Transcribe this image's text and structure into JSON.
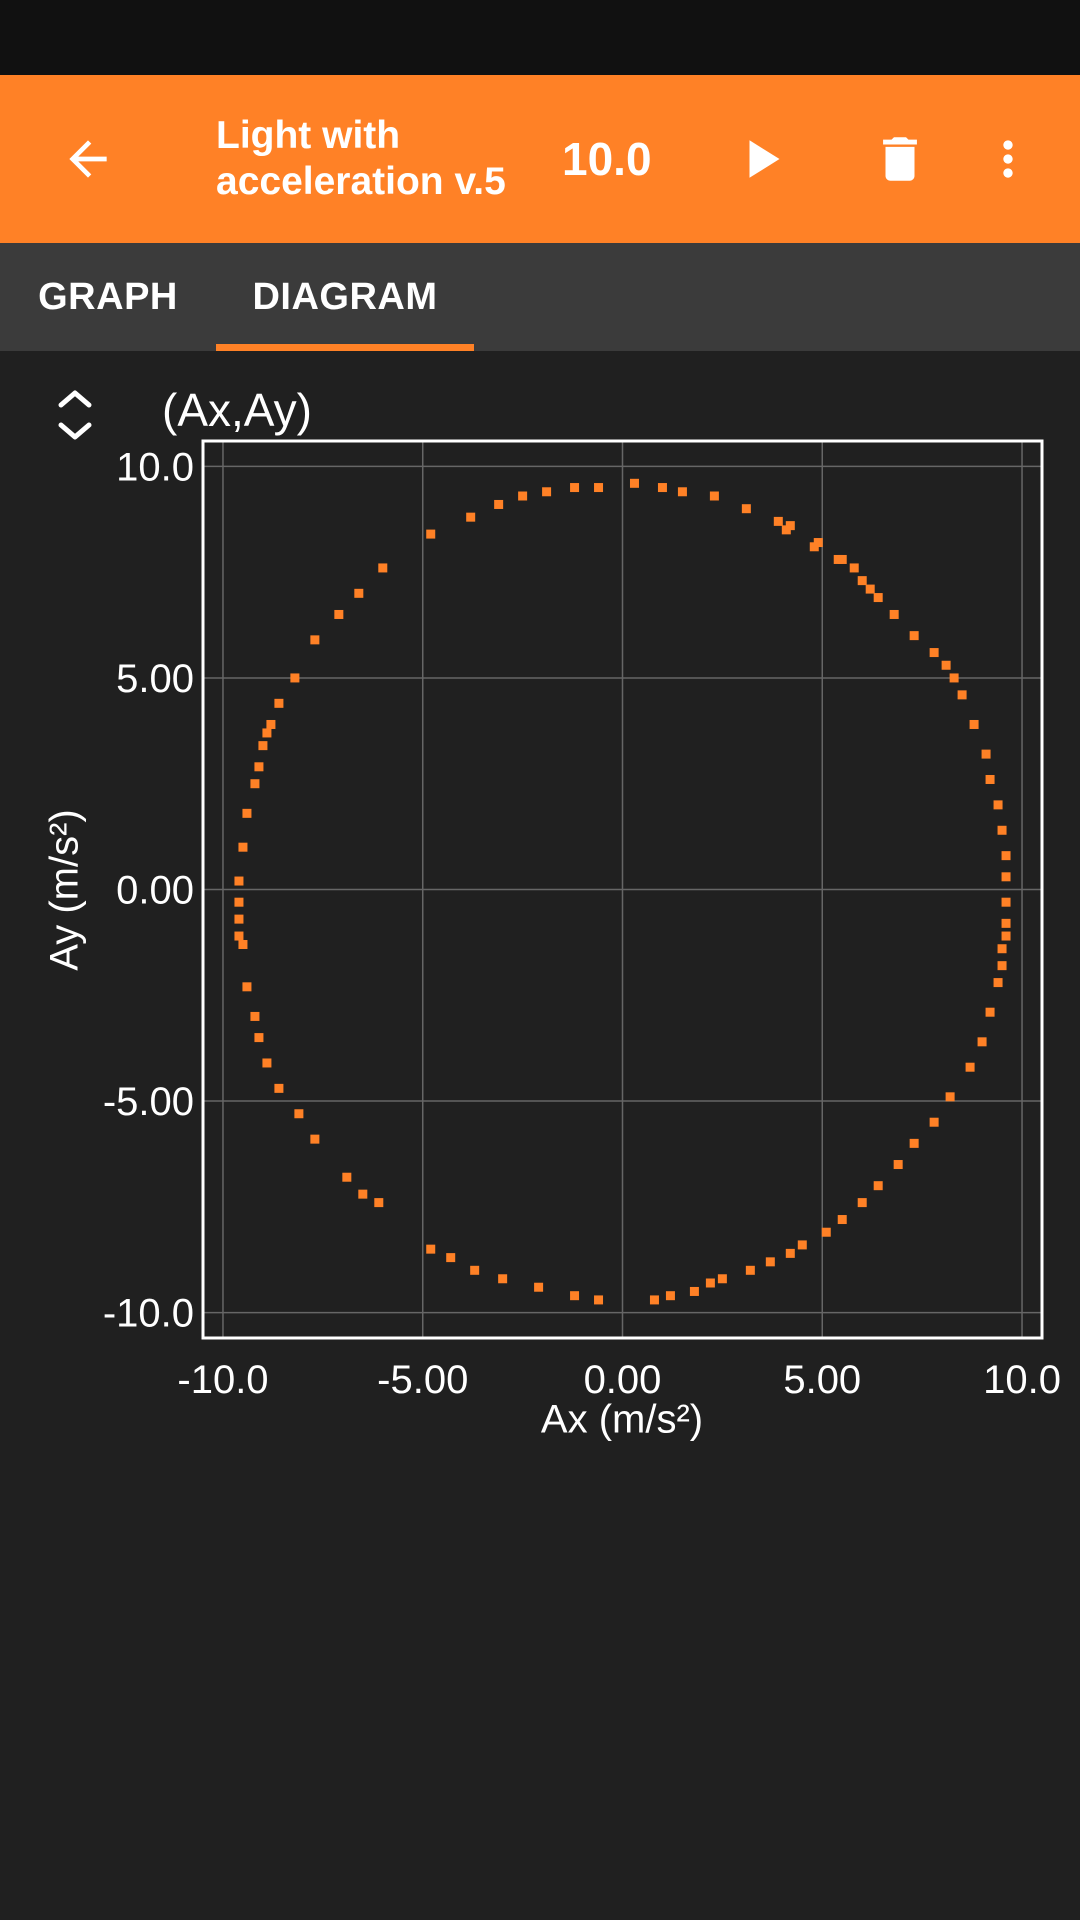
{
  "app_bar": {
    "back_icon": "arrow-back-icon",
    "title": "Light with\nacceleration v.5",
    "duration": "10.0",
    "play_icon": "play-icon",
    "delete_icon": "trash-icon",
    "more_icon": "more-vert-icon",
    "background_color": "#FF8126"
  },
  "tabs": [
    {
      "label": "GRAPH",
      "active": false
    },
    {
      "label": "DIAGRAM",
      "active": true
    }
  ],
  "diagram": {
    "expand_icon": "expand-collapse-icon",
    "title": "(Ax,Ay)"
  },
  "chart_data": {
    "type": "scatter",
    "title": "(Ax,Ay)",
    "xlabel": "Ax (m/s²)",
    "ylabel": "Ay (m/s²)",
    "xlim": [
      -10.5,
      10.5
    ],
    "ylim": [
      -10.6,
      10.6
    ],
    "xticks": [
      "-10.0",
      "-5.00",
      "0.00",
      "5.00",
      "10.0"
    ],
    "yticks": [
      "10.0",
      "5.00",
      "0.00",
      "-5.00",
      "-10.0"
    ],
    "grid": true,
    "marker_color": "#FF8126",
    "series": [
      {
        "x": [
          0.3,
          1.0,
          1.5,
          2.3,
          3.1,
          3.9,
          4.1,
          4.2,
          4.8,
          4.9,
          5.4,
          5.5,
          5.8,
          6.0,
          6.2,
          6.4,
          6.8,
          7.3,
          7.8,
          8.1,
          8.3,
          8.5,
          8.8,
          9.1,
          9.2,
          9.4,
          9.5,
          9.6,
          9.6,
          9.6,
          9.6,
          9.6,
          9.5,
          9.5,
          9.4,
          9.2,
          9.0,
          8.7,
          8.2,
          7.8,
          7.3,
          6.9,
          6.4,
          6.0,
          5.5,
          5.1,
          4.5,
          4.2,
          3.7,
          3.2,
          2.5,
          2.2,
          1.8,
          1.2,
          0.8,
          -0.6,
          -1.2,
          -2.1,
          -3.0,
          -3.7,
          -4.3,
          -4.8,
          -6.1,
          -6.5,
          -6.9,
          -7.7,
          -8.1,
          -8.6,
          -8.9,
          -9.1,
          -9.2,
          -9.4,
          -9.5,
          -9.6,
          -9.6,
          -9.6,
          -9.6,
          -9.5,
          -9.4,
          -9.2,
          -9.1,
          -9.0,
          -8.9,
          -8.8,
          -8.6,
          -8.2,
          -7.7,
          -7.1,
          -6.6,
          -6.0,
          -4.8,
          -3.8,
          -3.1,
          -2.5,
          -1.9,
          -1.2,
          -0.6
        ],
        "y": [
          9.6,
          9.5,
          9.4,
          9.3,
          9.0,
          8.7,
          8.5,
          8.6,
          8.1,
          8.2,
          7.8,
          7.8,
          7.6,
          7.3,
          7.1,
          6.9,
          6.5,
          6.0,
          5.6,
          5.3,
          5.0,
          4.6,
          3.9,
          3.2,
          2.6,
          2.0,
          1.4,
          0.8,
          0.3,
          -0.3,
          -0.8,
          -1.1,
          -1.4,
          -1.8,
          -2.2,
          -2.9,
          -3.6,
          -4.2,
          -4.9,
          -5.5,
          -6.0,
          -6.5,
          -7.0,
          -7.4,
          -7.8,
          -8.1,
          -8.4,
          -8.6,
          -8.8,
          -9.0,
          -9.2,
          -9.3,
          -9.5,
          -9.6,
          -9.7,
          -9.7,
          -9.6,
          -9.4,
          -9.2,
          -9.0,
          -8.7,
          -8.5,
          -7.4,
          -7.2,
          -6.8,
          -5.9,
          -5.3,
          -4.7,
          -4.1,
          -3.5,
          -3.0,
          -2.3,
          -1.3,
          -1.1,
          -0.7,
          -0.3,
          0.2,
          1.0,
          1.8,
          2.5,
          2.9,
          3.4,
          3.7,
          3.9,
          4.4,
          5.0,
          5.9,
          6.5,
          7.0,
          7.6,
          8.4,
          8.8,
          9.1,
          9.3,
          9.4,
          9.5,
          9.5
        ]
      }
    ]
  }
}
